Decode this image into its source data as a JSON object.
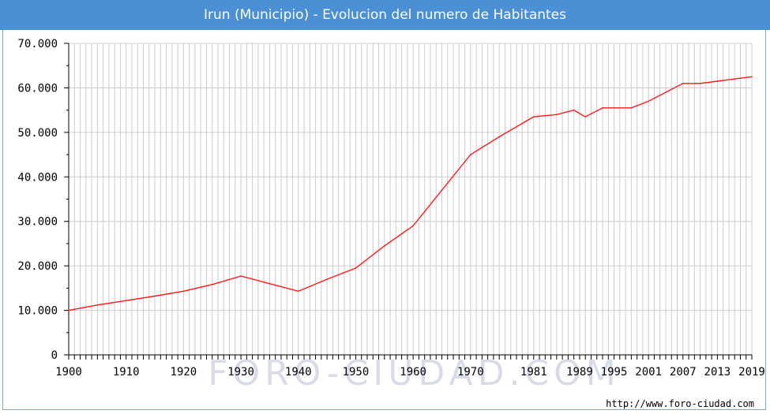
{
  "title": "Irun (Municipio) - Evolucion del numero de Habitantes",
  "watermark": "FORO-CIUDAD.COM",
  "footer_url": "http://www.foro-ciudad.com",
  "colors": {
    "title_bg": "#4b8fd4",
    "line": "#ff1a1a",
    "grid": "#cccccc",
    "watermark": "#d8dce8"
  },
  "chart_data": {
    "type": "line",
    "title": "Irun (Municipio) - Evolucion del numero de Habitantes",
    "xlabel": "",
    "ylabel": "",
    "xlim": [
      1900,
      2019
    ],
    "ylim": [
      0,
      70000
    ],
    "grid": true,
    "x_ticks": [
      {
        "value": 1900,
        "label": "1900"
      },
      {
        "value": 1910,
        "label": "1910"
      },
      {
        "value": 1920,
        "label": "1920"
      },
      {
        "value": 1930,
        "label": "1930"
      },
      {
        "value": 1940,
        "label": "1940"
      },
      {
        "value": 1950,
        "label": "1950"
      },
      {
        "value": 1960,
        "label": "1960"
      },
      {
        "value": 1970,
        "label": "1970"
      },
      {
        "value": 1981,
        "label": "1981"
      },
      {
        "value": 1989,
        "label": "1989"
      },
      {
        "value": 1995,
        "label": "1995"
      },
      {
        "value": 2001,
        "label": "2001"
      },
      {
        "value": 2007,
        "label": "2007"
      },
      {
        "value": 2013,
        "label": "2013"
      },
      {
        "value": 2019,
        "label": "2019"
      }
    ],
    "y_ticks": [
      {
        "value": 0,
        "label": "0"
      },
      {
        "value": 10000,
        "label": "10.000"
      },
      {
        "value": 20000,
        "label": "20.000"
      },
      {
        "value": 30000,
        "label": "30.000"
      },
      {
        "value": 40000,
        "label": "40.000"
      },
      {
        "value": 50000,
        "label": "50.000"
      },
      {
        "value": 60000,
        "label": "60.000"
      },
      {
        "value": 70000,
        "label": "70.000"
      }
    ],
    "series": [
      {
        "points": [
          [
            1900,
            10000
          ],
          [
            1905,
            11200
          ],
          [
            1910,
            12200
          ],
          [
            1915,
            13200
          ],
          [
            1920,
            14300
          ],
          [
            1925,
            15800
          ],
          [
            1930,
            17700
          ],
          [
            1935,
            16000
          ],
          [
            1940,
            14300
          ],
          [
            1945,
            17000
          ],
          [
            1950,
            19500
          ],
          [
            1955,
            24500
          ],
          [
            1960,
            29000
          ],
          [
            1965,
            37000
          ],
          [
            1970,
            45000
          ],
          [
            1975,
            49000
          ],
          [
            1981,
            53500
          ],
          [
            1985,
            54000
          ],
          [
            1988,
            55000
          ],
          [
            1990,
            53500
          ],
          [
            1993,
            55500
          ],
          [
            1995,
            55500
          ],
          [
            1998,
            55500
          ],
          [
            2001,
            57000
          ],
          [
            2004,
            59000
          ],
          [
            2007,
            61000
          ],
          [
            2010,
            61000
          ],
          [
            2013,
            61500
          ],
          [
            2016,
            62000
          ],
          [
            2019,
            62500
          ]
        ]
      }
    ]
  }
}
